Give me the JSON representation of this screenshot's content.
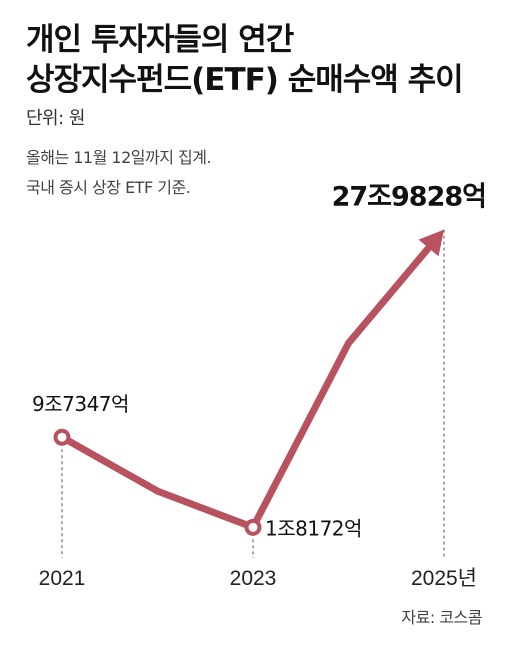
{
  "header": {
    "title_line1": "개인 투자자들의 연간",
    "title_line2": "상장지수펀드(ETF) 순매수액 추이",
    "unit": "단위: 원",
    "note_line1": "올해는 11월 12일까지 집계.",
    "note_line2": "국내 증시 상장 ETF 기준."
  },
  "source": "자료: 코스콤",
  "colors": {
    "line": "#b8525f",
    "dashed": "#555555",
    "text": "#111111"
  },
  "chart_data": {
    "type": "line",
    "title": "개인 투자자들의 연간 상장지수펀드(ETF) 순매수액 추이",
    "ylabel": "단위: 원",
    "x": [
      2021,
      2022,
      2023,
      2024,
      2025
    ],
    "x_tick_labels": [
      "2021",
      "2023",
      "2025년"
    ],
    "x_tick_values": [
      2021,
      2023,
      2025
    ],
    "series": [
      {
        "values": [
          97347,
          50000,
          18172,
          180000,
          279828
        ]
      }
    ],
    "annotations": [
      {
        "x": 2021,
        "text": "9조7347억"
      },
      {
        "x": 2023,
        "text": "1조8172억"
      },
      {
        "x": 2025,
        "text": "27조9828억"
      }
    ],
    "ylim": [
      0,
      290000
    ],
    "grid": false
  }
}
